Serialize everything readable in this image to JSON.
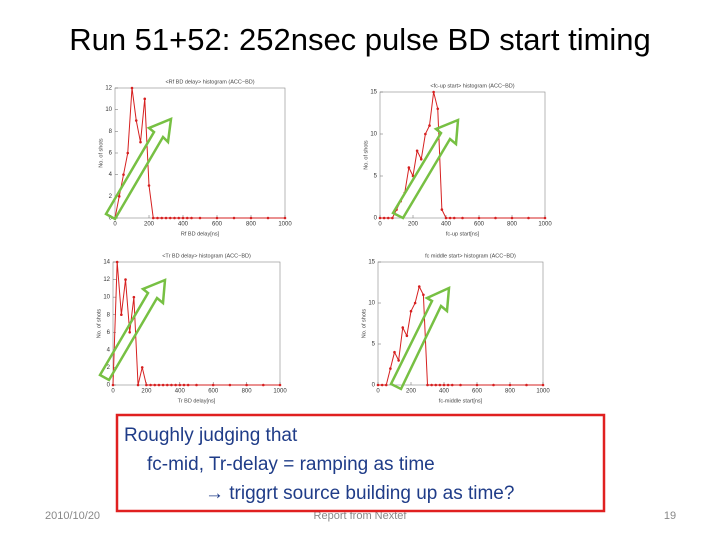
{
  "slide": {
    "title": "Run 51+52: 252nsec pulse BD start timing",
    "callout": [
      "Roughly judging that",
      "fc-mid, Tr-delay = ramping as time",
      "→ triggrt source building up as time?"
    ],
    "date": "2010/10/20",
    "footer": "Report from Nextef",
    "page": "19"
  },
  "chart_data": [
    {
      "type": "line",
      "title": "<Rf BD delay> histogram (ACC−BD)",
      "x_label": "Rf BD delay[ns]",
      "y_label": "No. of shots",
      "color": "#d62020",
      "x": [
        0,
        25,
        50,
        75,
        100,
        125,
        150,
        175,
        200,
        225,
        250,
        275,
        300,
        325,
        350,
        375,
        400,
        425,
        450,
        500,
        600,
        700,
        800,
        900,
        1000
      ],
      "values": [
        0,
        2,
        4,
        6,
        12,
        9,
        7,
        11,
        3,
        0,
        0,
        0,
        0,
        0,
        0,
        0,
        0,
        0,
        0,
        0,
        0,
        0,
        0,
        0,
        0
      ],
      "xlim": [
        0,
        1000
      ],
      "xticks": [
        0,
        200,
        400,
        600,
        800,
        1000
      ],
      "ylim": [
        0,
        12
      ],
      "yticks": [
        0,
        2,
        4,
        6,
        8,
        10,
        12
      ]
    },
    {
      "type": "line",
      "title": "<fc-up start> histogram (ACC−BD)",
      "x_label": "fc-up start[ns]",
      "y_label": "No. of shots",
      "color": "#d62020",
      "x": [
        0,
        25,
        50,
        75,
        100,
        125,
        150,
        175,
        200,
        225,
        250,
        275,
        300,
        325,
        350,
        375,
        400,
        425,
        450,
        500,
        600,
        700,
        800,
        900,
        1000
      ],
      "values": [
        0,
        0,
        0,
        0,
        1,
        2,
        3,
        6,
        5,
        8,
        7,
        10,
        11,
        15,
        13,
        1,
        0,
        0,
        0,
        0,
        0,
        0,
        0,
        0,
        0
      ],
      "xlim": [
        0,
        1000
      ],
      "xticks": [
        0,
        200,
        400,
        600,
        800,
        1000
      ],
      "ylim": [
        0,
        15
      ],
      "yticks": [
        0,
        5,
        10,
        15
      ]
    },
    {
      "type": "line",
      "title": "<Tr BD delay> histogram (ACC−BD)",
      "x_label": "Tr BD delay[ns]",
      "y_label": "No. of shots",
      "color": "#d62020",
      "x": [
        0,
        25,
        50,
        75,
        100,
        125,
        150,
        175,
        200,
        225,
        250,
        275,
        300,
        325,
        350,
        375,
        400,
        425,
        450,
        500,
        600,
        700,
        800,
        900,
        1000
      ],
      "values": [
        0,
        14,
        8,
        12,
        6,
        10,
        0,
        2,
        0,
        0,
        0,
        0,
        0,
        0,
        0,
        0,
        0,
        0,
        0,
        0,
        0,
        0,
        0,
        0,
        0
      ],
      "xlim": [
        0,
        1000
      ],
      "xticks": [
        0,
        200,
        400,
        600,
        800,
        1000
      ],
      "ylim": [
        0,
        14
      ],
      "yticks": [
        0,
        2,
        4,
        6,
        8,
        10,
        12,
        14
      ]
    },
    {
      "type": "line",
      "title": "fc middle start> histogram (ACC−BD)",
      "x_label": "fc-middle start[ns]",
      "y_label": "No. of shots",
      "color": "#d62020",
      "x": [
        0,
        25,
        50,
        75,
        100,
        125,
        150,
        175,
        200,
        225,
        250,
        275,
        300,
        325,
        350,
        375,
        400,
        425,
        450,
        500,
        600,
        700,
        800,
        900,
        1000
      ],
      "values": [
        0,
        0,
        0,
        2,
        4,
        3,
        7,
        6,
        9,
        10,
        12,
        11,
        0,
        0,
        0,
        0,
        0,
        0,
        0,
        0,
        0,
        0,
        0,
        0,
        0
      ],
      "xlim": [
        0,
        1000
      ],
      "xticks": [
        0,
        200,
        400,
        600,
        800,
        1000
      ],
      "ylim": [
        0,
        15
      ],
      "yticks": [
        0,
        5,
        10,
        15
      ]
    }
  ]
}
